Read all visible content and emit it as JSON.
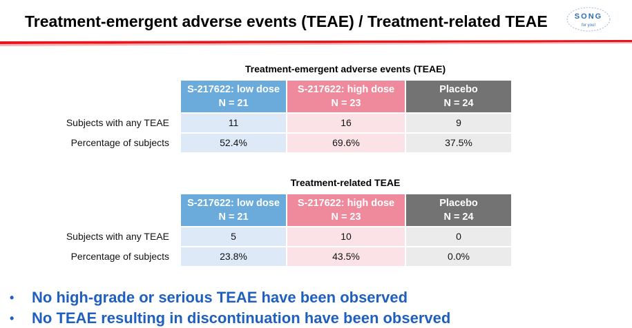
{
  "page": {
    "title": "Treatment-emergent adverse events (TEAE) / Treatment-related TEAE",
    "logo": {
      "line1": "SONG",
      "line2": "for you!",
      "icon": "song-logo"
    }
  },
  "tables": [
    {
      "title": "Treatment-emergent adverse events (TEAE)",
      "columns": [
        {
          "name": "S-217622: low dose",
          "n": "N = 21",
          "color": "#6aabdc"
        },
        {
          "name": "S-217622: high dose",
          "n": "N = 23",
          "color": "#ee8a9c"
        },
        {
          "name": "Placebo",
          "n": "N = 24",
          "color": "#737373"
        }
      ],
      "rows": [
        {
          "label": "Subjects with any TEAE",
          "values": [
            "11",
            "16",
            "9"
          ]
        },
        {
          "label": "Percentage of subjects",
          "values": [
            "52.4%",
            "69.6%",
            "37.5%"
          ]
        }
      ]
    },
    {
      "title": "Treatment-related TEAE",
      "columns": [
        {
          "name": "S-217622: low dose",
          "n": "N = 21",
          "color": "#6aabdc"
        },
        {
          "name": "S-217622: high dose",
          "n": "N = 23",
          "color": "#ee8a9c"
        },
        {
          "name": "Placebo",
          "n": "N = 24",
          "color": "#737373"
        }
      ],
      "rows": [
        {
          "label": "Subjects with any TEAE",
          "values": [
            "5",
            "10",
            "0"
          ]
        },
        {
          "label": "Percentage of subjects",
          "values": [
            "23.8%",
            "43.5%",
            "0.0%"
          ]
        }
      ]
    }
  ],
  "bullets": {
    "marker": "•",
    "items": [
      "No high-grade or serious TEAE have been observed",
      "No TEAE resulting in discontinuation have been observed"
    ]
  },
  "colors": {
    "accent_red": "#e8141b",
    "bullet_blue": "#1f5fbf"
  }
}
